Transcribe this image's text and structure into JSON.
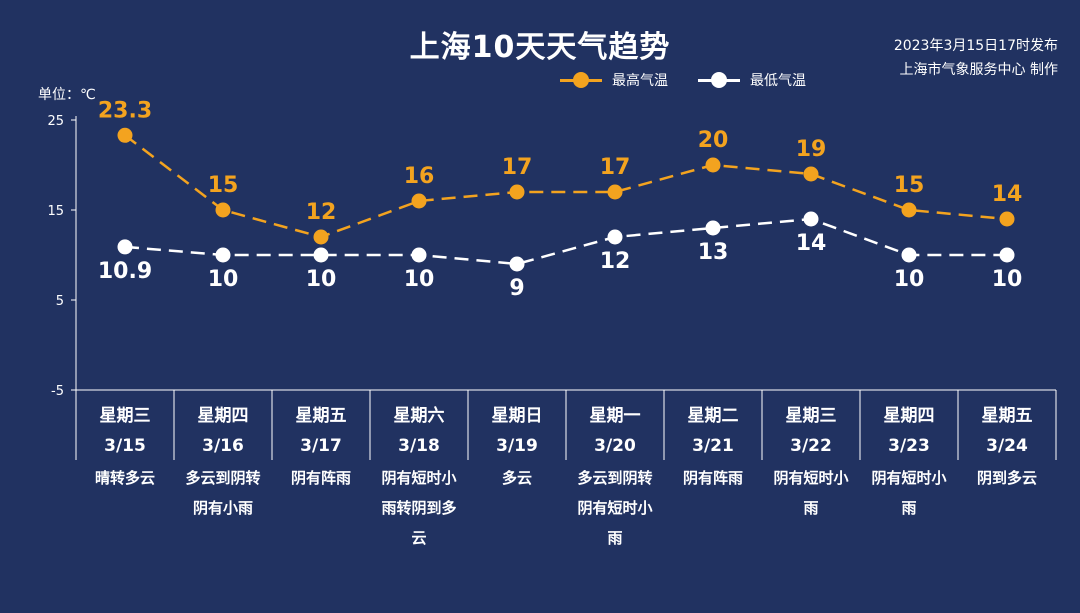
{
  "title": "上海10天天气趋势",
  "publish": {
    "line1": "2023年3月15日17时发布",
    "line2": "上海市气象服务中心 制作"
  },
  "unit_label": "单位：℃",
  "colors": {
    "background": "#213261",
    "high": "#f3a31f",
    "low": "#ffffff"
  },
  "chart_data": {
    "type": "line",
    "title": "上海10天天气趋势",
    "ylabel": "单位：℃",
    "ylim": [
      -5,
      25
    ],
    "yticks": [
      25,
      15,
      5,
      -5
    ],
    "legend": "top-right",
    "categories": [
      "3/15",
      "3/16",
      "3/17",
      "3/18",
      "3/19",
      "3/20",
      "3/21",
      "3/22",
      "3/23",
      "3/24"
    ],
    "weekdays": [
      "星期三",
      "星期四",
      "星期五",
      "星期六",
      "星期日",
      "星期一",
      "星期二",
      "星期三",
      "星期四",
      "星期五"
    ],
    "descriptions": [
      [
        "晴转多云"
      ],
      [
        "多云到阴转",
        "阴有小雨"
      ],
      [
        "阴有阵雨"
      ],
      [
        "阴有短时小",
        "雨转阴到多",
        "云"
      ],
      [
        "多云"
      ],
      [
        "多云到阴转",
        "阴有短时小",
        "雨"
      ],
      [
        "阴有阵雨"
      ],
      [
        "阴有短时小",
        "雨"
      ],
      [
        "阴有短时小",
        "雨"
      ],
      [
        "阴到多云"
      ]
    ],
    "series": [
      {
        "name": "最高气温",
        "values": [
          23.3,
          15,
          12,
          16,
          17,
          17,
          20,
          19,
          15,
          14
        ],
        "labels": [
          "23.3",
          "15",
          "12",
          "16",
          "17",
          "17",
          "20",
          "19",
          "15",
          "14"
        ]
      },
      {
        "name": "最低气温",
        "values": [
          10.9,
          10,
          10,
          10,
          9,
          12,
          13,
          14,
          10,
          10
        ],
        "labels": [
          "10.9",
          "10",
          "10",
          "10",
          "9",
          "12",
          "13",
          "14",
          "10",
          "10"
        ]
      }
    ]
  }
}
